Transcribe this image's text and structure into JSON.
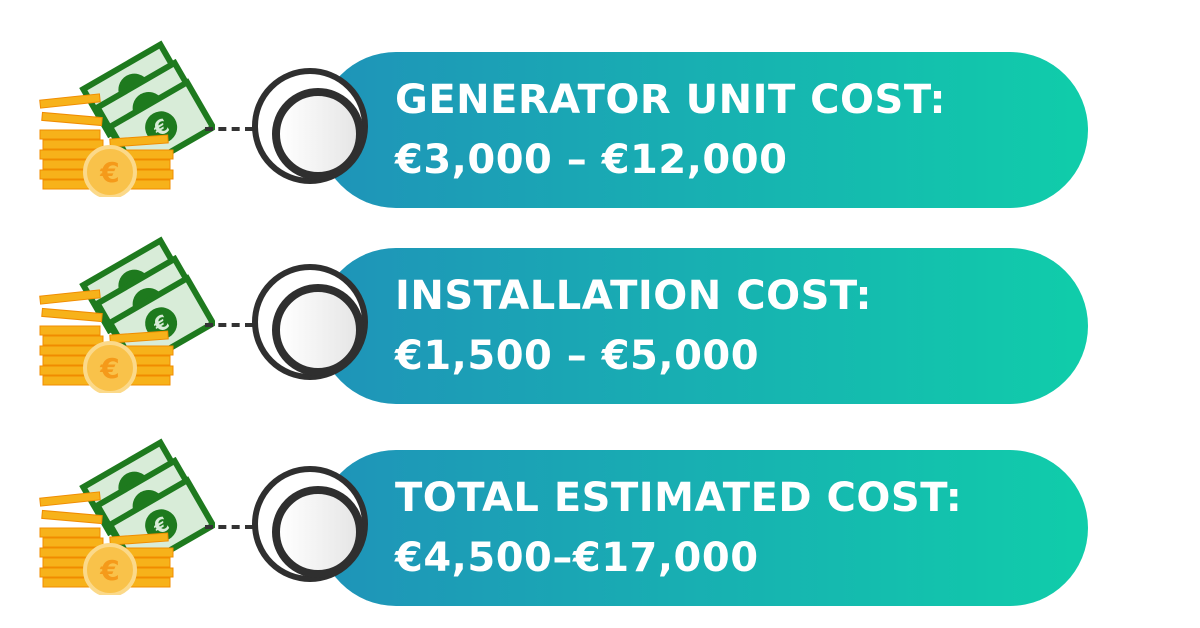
{
  "colors": {
    "gradient_start": "#1f93b9",
    "gradient_end": "#10cdaa",
    "ring": "#2f2f2f",
    "coin": "#f7b21a",
    "bill": "#1e7a1e"
  },
  "items": [
    {
      "icon": "euro-money-stack-icon",
      "title": "GENERATOR UNIT COST:",
      "value": "€3,000 – €12,000"
    },
    {
      "icon": "euro-money-stack-icon",
      "title": "INSTALLATION COST:",
      "value": "€1,500 – €5,000"
    },
    {
      "icon": "euro-money-stack-icon",
      "title": "TOTAL ESTIMATED COST:",
      "value": "€4,500–€17,000"
    }
  ]
}
